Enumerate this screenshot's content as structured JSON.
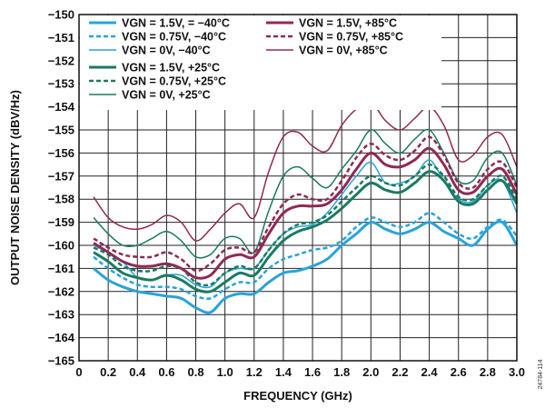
{
  "chart_data": {
    "type": "line",
    "xlabel": "FREQUENCY (GHz)",
    "ylabel": "OUTPUT NOISE DENSITY (dBV/Hz)",
    "xlim": [
      0,
      3.0
    ],
    "ylim": [
      -165,
      -150
    ],
    "x_ticks": [
      "0",
      "0.2",
      "0.4",
      "0.6",
      "0.8",
      "1.0",
      "1.2",
      "1.4",
      "1.6",
      "1.8",
      "2.0",
      "2.2",
      "2.4",
      "2.6",
      "2.8",
      "3.0"
    ],
    "y_ticks": [
      "−165",
      "−164",
      "−163",
      "−162",
      "−161",
      "−160",
      "−159",
      "−158",
      "−157",
      "−156",
      "−155",
      "−154",
      "−153",
      "−152",
      "−151",
      "−150"
    ],
    "grid": true,
    "legend_placement": "top-left",
    "watermark": "24784-114",
    "x": [
      0.1,
      0.2,
      0.3,
      0.4,
      0.5,
      0.6,
      0.7,
      0.8,
      0.9,
      1.0,
      1.1,
      1.2,
      1.3,
      1.4,
      1.5,
      1.6,
      1.7,
      1.8,
      1.9,
      2.0,
      2.1,
      2.2,
      2.3,
      2.4,
      2.5,
      2.6,
      2.7,
      2.8,
      2.9,
      3.0
    ],
    "series": [
      {
        "name": "VGN = 1.5V, = −40°C",
        "color": "#29a3d8",
        "dash": "solid",
        "width": 3,
        "values": [
          -161.0,
          -161.5,
          -161.8,
          -162.0,
          -162.1,
          -162.2,
          -162.3,
          -162.7,
          -162.9,
          -162.3,
          -162.1,
          -162.1,
          -161.6,
          -161.2,
          -161.1,
          -160.9,
          -160.6,
          -160.0,
          -159.5,
          -159.0,
          -159.3,
          -159.5,
          -159.3,
          -159.0,
          -159.4,
          -159.7,
          -160.0,
          -159.3,
          -159.0,
          -160.0
        ]
      },
      {
        "name": "VGN = 0.75V, −40°C",
        "color": "#29a3d8",
        "dash": "dashed",
        "width": 2.5,
        "values": [
          -160.5,
          -161.0,
          -161.4,
          -161.7,
          -161.8,
          -161.8,
          -161.9,
          -162.2,
          -162.3,
          -161.9,
          -161.6,
          -161.6,
          -161.0,
          -160.6,
          -160.4,
          -160.2,
          -160.1,
          -159.8,
          -159.2,
          -158.8,
          -159.0,
          -159.2,
          -159.0,
          -158.6,
          -159.0,
          -159.5,
          -159.7,
          -159.2,
          -158.9,
          -159.6
        ]
      },
      {
        "name": "VGN = 0V, −40°C",
        "color": "#29a3d8",
        "dash": "solid",
        "width": 1.5,
        "values": [
          -160.0,
          -160.3,
          -160.7,
          -161.4,
          -161.5,
          -161.3,
          -161.3,
          -161.7,
          -161.8,
          -161.2,
          -161.0,
          -161.0,
          -160.2,
          -159.5,
          -159.2,
          -159.1,
          -158.6,
          -157.8,
          -157.0,
          -156.4,
          -157.3,
          -157.3,
          -157.0,
          -156.3,
          -157.2,
          -158.0,
          -158.1,
          -157.4,
          -157.2,
          -158.6
        ]
      },
      {
        "name": "VGN = 1.5V, +25°C",
        "color": "#1a7a63",
        "dash": "solid",
        "width": 3,
        "values": [
          -160.3,
          -160.7,
          -161.2,
          -161.4,
          -161.5,
          -161.3,
          -161.5,
          -161.9,
          -162.0,
          -161.6,
          -161.2,
          -161.3,
          -160.5,
          -159.8,
          -159.4,
          -159.2,
          -158.9,
          -158.4,
          -157.8,
          -157.3,
          -157.6,
          -157.7,
          -157.3,
          -156.8,
          -157.2,
          -158.1,
          -158.2,
          -157.6,
          -157.2,
          -158.2
        ]
      },
      {
        "name": "VGN = 0.75V, +25°C",
        "color": "#1a7a63",
        "dash": "dashed",
        "width": 2.5,
        "values": [
          -160.1,
          -160.4,
          -160.9,
          -161.1,
          -161.1,
          -160.9,
          -161.0,
          -161.6,
          -161.7,
          -161.2,
          -160.9,
          -161.0,
          -160.2,
          -159.5,
          -159.1,
          -159.0,
          -158.7,
          -158.1,
          -157.5,
          -157.0,
          -157.3,
          -157.4,
          -157.0,
          -156.5,
          -157.0,
          -157.9,
          -158.0,
          -157.4,
          -157.0,
          -158.0
        ]
      },
      {
        "name": "VGN = 0V, +25°C",
        "color": "#1a7a63",
        "dash": "solid",
        "width": 1.5,
        "values": [
          -158.8,
          -159.5,
          -160.0,
          -160.0,
          -159.7,
          -159.4,
          -159.8,
          -160.5,
          -160.4,
          -159.7,
          -159.7,
          -160.3,
          -158.5,
          -157.0,
          -156.6,
          -157.1,
          -157.5,
          -156.7,
          -155.9,
          -155.0,
          -155.6,
          -156.0,
          -155.4,
          -155.0,
          -156.0,
          -157.2,
          -157.2,
          -156.2,
          -156.0,
          -157.4
        ]
      },
      {
        "name": "VGN = 1.5V, +85°C",
        "color": "#8e2a55",
        "dash": "solid",
        "width": 3,
        "values": [
          -159.9,
          -160.3,
          -160.7,
          -160.9,
          -160.9,
          -160.8,
          -161.0,
          -161.4,
          -161.3,
          -160.6,
          -160.4,
          -160.5,
          -159.5,
          -158.6,
          -158.3,
          -158.3,
          -158.2,
          -157.6,
          -156.7,
          -156.0,
          -156.5,
          -156.6,
          -156.3,
          -155.8,
          -156.5,
          -157.6,
          -157.7,
          -157.0,
          -156.7,
          -157.8
        ]
      },
      {
        "name": "VGN = 0.75V, +85°C",
        "color": "#8e2a55",
        "dash": "dashed",
        "width": 2.5,
        "values": [
          -159.7,
          -160.1,
          -160.4,
          -160.5,
          -160.5,
          -160.3,
          -160.6,
          -161.1,
          -160.8,
          -160.2,
          -160.1,
          -160.3,
          -159.2,
          -158.2,
          -157.8,
          -158.0,
          -158.0,
          -157.2,
          -156.2,
          -155.6,
          -156.1,
          -156.3,
          -155.9,
          -155.3,
          -156.1,
          -157.3,
          -157.5,
          -156.7,
          -156.4,
          -157.5
        ]
      },
      {
        "name": "VGN = 0V, +85°C",
        "color": "#8e2a55",
        "dash": "solid",
        "width": 1.5,
        "values": [
          -157.9,
          -158.8,
          -159.2,
          -159.3,
          -159.1,
          -158.7,
          -159.0,
          -159.8,
          -159.3,
          -158.6,
          -158.2,
          -158.8,
          -156.8,
          -155.3,
          -155.1,
          -155.7,
          -155.9,
          -154.8,
          -154.1,
          -153.8,
          -154.6,
          -155.0,
          -154.5,
          -154.0,
          -154.8,
          -156.3,
          -156.1,
          -155.3,
          -155.2,
          -156.6
        ]
      }
    ]
  }
}
